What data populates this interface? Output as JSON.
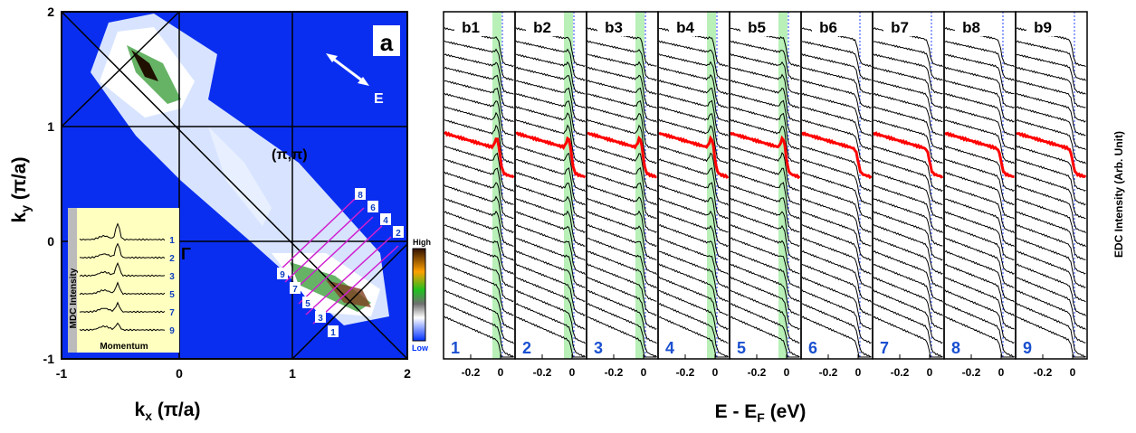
{
  "map": {
    "panel_label": "a",
    "xticks": [
      "-1",
      "0",
      "1",
      "2"
    ],
    "yticks": [
      "-1",
      "0",
      "1",
      "2"
    ],
    "xlabel": {
      "main": "k",
      "sub": "x",
      "rest": " (π/a)"
    },
    "ylabel": {
      "main": "k",
      "sub": "y",
      "rest": " (π/a)"
    },
    "point_label": "(π,π)",
    "gamma_label": "Γ",
    "field_label": "E",
    "colorbar": {
      "high": "High",
      "low": "Low"
    },
    "inset": {
      "ylabel": "MDC Intensity",
      "xlabel": "Momentum",
      "curve_labels": [
        "1",
        "2",
        "3",
        "5",
        "7",
        "9"
      ]
    },
    "cut_labels_left": [
      "9",
      "7",
      "5",
      "3",
      "1"
    ],
    "cut_labels_right": [
      "8",
      "6",
      "4",
      "2"
    ]
  },
  "edc": {
    "panel_titles": [
      "b1",
      "b2",
      "b3",
      "b4",
      "b5",
      "b6",
      "b7",
      "b8",
      "b9"
    ],
    "panel_numbers": [
      "1",
      "2",
      "3",
      "4",
      "5",
      "6",
      "7",
      "8",
      "9"
    ],
    "xticks": [
      "-0.2",
      "0"
    ],
    "xlabel": {
      "main": "E - E",
      "sub": "F",
      "rest": " (eV)"
    },
    "ylabel": "EDC Intensity (Arb. Unit)"
  }
}
